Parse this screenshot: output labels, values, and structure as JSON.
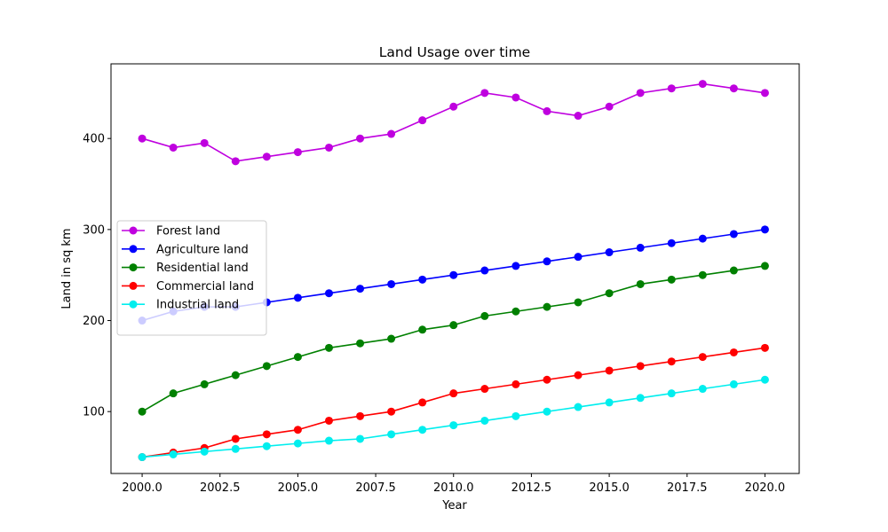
{
  "chart_data": {
    "type": "line",
    "title": "Land Usage over time",
    "xlabel": "Year",
    "ylabel": "Land in sq km",
    "xlim": [
      1999,
      2021.1
    ],
    "ylim": [
      32,
      482
    ],
    "xticks": [
      2000.0,
      2002.5,
      2005.0,
      2007.5,
      2010.0,
      2012.5,
      2015.0,
      2017.5,
      2020.0
    ],
    "xtick_labels": [
      "2000.0",
      "2002.5",
      "2005.0",
      "2007.5",
      "2010.0",
      "2012.5",
      "2015.0",
      "2017.5",
      "2020.0"
    ],
    "yticks": [
      100,
      200,
      300,
      400
    ],
    "ytick_labels": [
      "100",
      "200",
      "300",
      "400"
    ],
    "grid": false,
    "legend_position": "center-left",
    "x": [
      2000,
      2001,
      2002,
      2003,
      2004,
      2005,
      2006,
      2007,
      2008,
      2009,
      2010,
      2011,
      2012,
      2013,
      2014,
      2015,
      2016,
      2017,
      2018,
      2019,
      2020
    ],
    "series": [
      {
        "name": "Forest land",
        "color": "#bf00df",
        "values": [
          400,
          390,
          395,
          375,
          380,
          385,
          390,
          400,
          405,
          420,
          435,
          450,
          445,
          430,
          425,
          435,
          450,
          455,
          460,
          455,
          450
        ]
      },
      {
        "name": "Agriculture land",
        "color": "#0000ff",
        "values": [
          200,
          210,
          215,
          215,
          220,
          225,
          230,
          235,
          240,
          245,
          250,
          255,
          260,
          265,
          270,
          275,
          280,
          285,
          290,
          295,
          300
        ]
      },
      {
        "name": "Residential land",
        "color": "#008000",
        "values": [
          100,
          120,
          130,
          140,
          150,
          160,
          170,
          175,
          180,
          190,
          195,
          205,
          210,
          215,
          220,
          230,
          240,
          245,
          250,
          255,
          260
        ]
      },
      {
        "name": "Commercial land",
        "color": "#ff0000",
        "values": [
          50,
          55,
          60,
          70,
          75,
          80,
          90,
          95,
          100,
          110,
          120,
          125,
          130,
          135,
          140,
          145,
          150,
          155,
          160,
          165,
          170
        ]
      },
      {
        "name": "Industrial land",
        "color": "#00eeee",
        "values": [
          50,
          53,
          56,
          59,
          62,
          65,
          68,
          70,
          75,
          80,
          85,
          90,
          95,
          100,
          105,
          110,
          115,
          120,
          125,
          130,
          135
        ]
      }
    ]
  }
}
